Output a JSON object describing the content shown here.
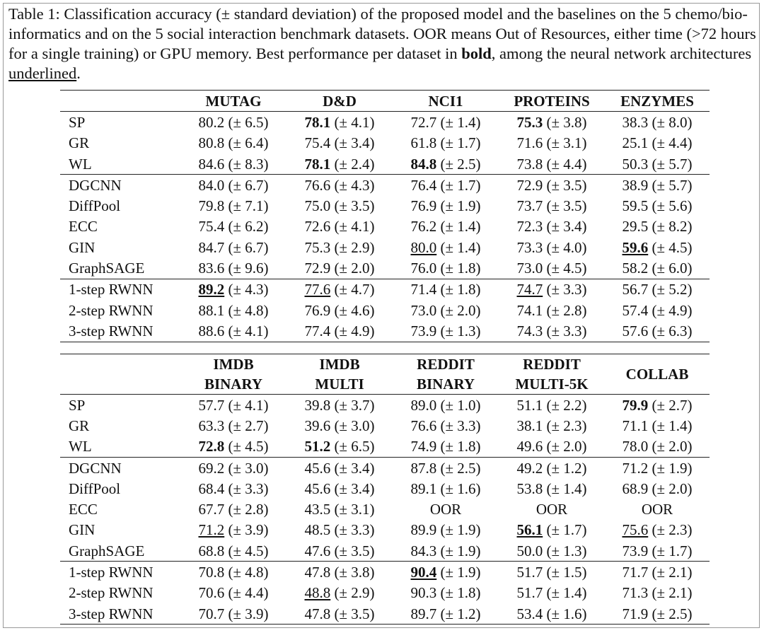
{
  "caption": [
    {
      "text": "Table 1: Classification accuracy (± standard deviation) of the proposed model and the baselines on the 5 chemo/bio-informatics and on the 5 social interaction benchmark datasets. OOR means Out of Resources, either time (>72 hours for a single training) or GPU memory. Best performance per dataset in "
    },
    {
      "text": "bold",
      "style": "bold"
    },
    {
      "text": ", among the neural network architectures "
    },
    {
      "text": "underlined",
      "style": "underline"
    },
    {
      "text": "."
    }
  ],
  "tables": [
    {
      "headers": [
        [
          "MUTAG"
        ],
        [
          "D&D"
        ],
        [
          "NCI1"
        ],
        [
          "PROTEINS"
        ],
        [
          "ENZYMES"
        ]
      ],
      "groups": [
        [
          {
            "label": "SP",
            "cells": [
              {
                "mean": "80.2",
                "sd": "(± 6.5)"
              },
              {
                "mean": "78.1",
                "sd": "(± 4.1)",
                "style": "bold"
              },
              {
                "mean": "72.7",
                "sd": "(± 1.4)"
              },
              {
                "mean": "75.3",
                "sd": "(± 3.8)",
                "style": "bold"
              },
              {
                "mean": "38.3",
                "sd": "(± 8.0)"
              }
            ]
          },
          {
            "label": "GR",
            "cells": [
              {
                "mean": "80.8",
                "sd": "(± 6.4)"
              },
              {
                "mean": "75.4",
                "sd": "(± 3.4)"
              },
              {
                "mean": "61.8",
                "sd": "(± 1.7)"
              },
              {
                "mean": "71.6",
                "sd": "(± 3.1)"
              },
              {
                "mean": "25.1",
                "sd": "(± 4.4)"
              }
            ]
          },
          {
            "label": "WL",
            "cells": [
              {
                "mean": "84.6",
                "sd": "(± 8.3)"
              },
              {
                "mean": "78.1",
                "sd": "(± 2.4)",
                "style": "bold"
              },
              {
                "mean": "84.8",
                "sd": "(± 2.5)",
                "style": "bold"
              },
              {
                "mean": "73.8",
                "sd": "(± 4.4)"
              },
              {
                "mean": "50.3",
                "sd": "(± 5.7)"
              }
            ]
          }
        ],
        [
          {
            "label": "DGCNN",
            "cells": [
              {
                "mean": "84.0",
                "sd": "(± 6.7)"
              },
              {
                "mean": "76.6",
                "sd": "(± 4.3)"
              },
              {
                "mean": "76.4",
                "sd": "(± 1.7)"
              },
              {
                "mean": "72.9",
                "sd": "(± 3.5)"
              },
              {
                "mean": "38.9",
                "sd": "(± 5.7)"
              }
            ]
          },
          {
            "label": "DiffPool",
            "cells": [
              {
                "mean": "79.8",
                "sd": "(± 7.1)"
              },
              {
                "mean": "75.0",
                "sd": "(± 3.5)"
              },
              {
                "mean": "76.9",
                "sd": "(± 1.9)"
              },
              {
                "mean": "73.7",
                "sd": "(± 3.5)"
              },
              {
                "mean": "59.5",
                "sd": "(± 5.6)"
              }
            ]
          },
          {
            "label": "ECC",
            "cells": [
              {
                "mean": "75.4",
                "sd": "(± 6.2)"
              },
              {
                "mean": "72.6",
                "sd": "(± 4.1)"
              },
              {
                "mean": "76.2",
                "sd": "(± 1.4)"
              },
              {
                "mean": "72.3",
                "sd": "(± 3.4)"
              },
              {
                "mean": "29.5",
                "sd": "(± 8.2)"
              }
            ]
          },
          {
            "label": "GIN",
            "cells": [
              {
                "mean": "84.7",
                "sd": "(± 6.7)"
              },
              {
                "mean": "75.3",
                "sd": "(± 2.9)"
              },
              {
                "mean": "80.0",
                "sd": "(± 1.4)",
                "style": "underline"
              },
              {
                "mean": "73.3",
                "sd": "(± 4.0)"
              },
              {
                "mean": "59.6",
                "sd": "(± 4.5)",
                "style": "bold underline"
              }
            ]
          },
          {
            "label": "GraphSAGE",
            "cells": [
              {
                "mean": "83.6",
                "sd": "(± 9.6)"
              },
              {
                "mean": "72.9",
                "sd": "(± 2.0)"
              },
              {
                "mean": "76.0",
                "sd": "(± 1.8)"
              },
              {
                "mean": "73.0",
                "sd": "(± 4.5)"
              },
              {
                "mean": "58.2",
                "sd": "(± 6.0)"
              }
            ]
          }
        ],
        [
          {
            "label": "1-step RWNN",
            "cells": [
              {
                "mean": "89.2",
                "sd": "(± 4.3)",
                "style": "bold underline"
              },
              {
                "mean": "77.6",
                "sd": "(± 4.7)",
                "style": "underline"
              },
              {
                "mean": "71.4",
                "sd": "(± 1.8)"
              },
              {
                "mean": "74.7",
                "sd": "(± 3.3)",
                "style": "underline"
              },
              {
                "mean": "56.7",
                "sd": "(± 5.2)"
              }
            ]
          },
          {
            "label": "2-step RWNN",
            "cells": [
              {
                "mean": "88.1",
                "sd": "(± 4.8)"
              },
              {
                "mean": "76.9",
                "sd": "(± 4.6)"
              },
              {
                "mean": "73.0",
                "sd": "(± 2.0)"
              },
              {
                "mean": "74.1",
                "sd": "(± 2.8)"
              },
              {
                "mean": "57.4",
                "sd": "(± 4.9)"
              }
            ]
          },
          {
            "label": "3-step RWNN",
            "cells": [
              {
                "mean": "88.6",
                "sd": "(± 4.1)"
              },
              {
                "mean": "77.4",
                "sd": "(± 4.9)"
              },
              {
                "mean": "73.9",
                "sd": "(± 1.3)"
              },
              {
                "mean": "74.3",
                "sd": "(± 3.3)"
              },
              {
                "mean": "57.6",
                "sd": "(± 6.3)"
              }
            ]
          }
        ]
      ]
    },
    {
      "headers": [
        [
          "IMDB",
          "BINARY"
        ],
        [
          "IMDB",
          "MULTI"
        ],
        [
          "REDDIT",
          "BINARY"
        ],
        [
          "REDDIT",
          "MULTI-5K"
        ],
        [
          "COLLAB"
        ]
      ],
      "groups": [
        [
          {
            "label": "SP",
            "cells": [
              {
                "mean": "57.7",
                "sd": "(± 4.1)"
              },
              {
                "mean": "39.8",
                "sd": "(± 3.7)"
              },
              {
                "mean": "89.0",
                "sd": "(± 1.0)"
              },
              {
                "mean": "51.1",
                "sd": "(± 2.2)"
              },
              {
                "mean": "79.9",
                "sd": "(± 2.7)",
                "style": "bold"
              }
            ]
          },
          {
            "label": "GR",
            "cells": [
              {
                "mean": "63.3",
                "sd": "(± 2.7)"
              },
              {
                "mean": "39.6",
                "sd": "(± 3.0)"
              },
              {
                "mean": "76.6",
                "sd": "(± 3.3)"
              },
              {
                "mean": "38.1",
                "sd": "(± 2.3)"
              },
              {
                "mean": "71.1",
                "sd": "(± 1.4)"
              }
            ]
          },
          {
            "label": "WL",
            "cells": [
              {
                "mean": "72.8",
                "sd": "(± 4.5)",
                "style": "bold"
              },
              {
                "mean": "51.2",
                "sd": "(± 6.5)",
                "style": "bold"
              },
              {
                "mean": "74.9",
                "sd": "(± 1.8)"
              },
              {
                "mean": "49.6",
                "sd": "(± 2.0)"
              },
              {
                "mean": "78.0",
                "sd": "(± 2.0)"
              }
            ]
          }
        ],
        [
          {
            "label": "DGCNN",
            "cells": [
              {
                "mean": "69.2",
                "sd": "(± 3.0)"
              },
              {
                "mean": "45.6",
                "sd": "(± 3.4)"
              },
              {
                "mean": "87.8",
                "sd": "(± 2.5)"
              },
              {
                "mean": "49.2",
                "sd": "(± 1.2)"
              },
              {
                "mean": "71.2",
                "sd": "(± 1.9)"
              }
            ]
          },
          {
            "label": "DiffPool",
            "cells": [
              {
                "mean": "68.4",
                "sd": "(± 3.3)"
              },
              {
                "mean": "45.6",
                "sd": "(± 3.4)"
              },
              {
                "mean": "89.1",
                "sd": "(± 1.6)"
              },
              {
                "mean": "53.8",
                "sd": "(± 1.4)"
              },
              {
                "mean": "68.9",
                "sd": "(± 2.0)"
              }
            ]
          },
          {
            "label": "ECC",
            "cells": [
              {
                "mean": "67.7",
                "sd": "(± 2.8)"
              },
              {
                "mean": "43.5",
                "sd": "(± 3.1)"
              },
              {
                "text": "OOR"
              },
              {
                "text": "OOR"
              },
              {
                "text": "OOR"
              }
            ]
          },
          {
            "label": "GIN",
            "cells": [
              {
                "mean": "71.2",
                "sd": "(± 3.9)",
                "style": "underline"
              },
              {
                "mean": "48.5",
                "sd": "(± 3.3)"
              },
              {
                "mean": "89.9",
                "sd": "(± 1.9)"
              },
              {
                "mean": "56.1",
                "sd": "(± 1.7)",
                "style": "bold underline"
              },
              {
                "mean": "75.6",
                "sd": "(± 2.3)",
                "style": "underline"
              }
            ]
          },
          {
            "label": "GraphSAGE",
            "cells": [
              {
                "mean": "68.8",
                "sd": "(± 4.5)"
              },
              {
                "mean": "47.6",
                "sd": "(± 3.5)"
              },
              {
                "mean": "84.3",
                "sd": "(± 1.9)"
              },
              {
                "mean": "50.0",
                "sd": "(± 1.3)"
              },
              {
                "mean": "73.9",
                "sd": "(± 1.7)"
              }
            ]
          }
        ],
        [
          {
            "label": "1-step RWNN",
            "cells": [
              {
                "mean": "70.8",
                "sd": "(± 4.8)"
              },
              {
                "mean": "47.8",
                "sd": "(± 3.8)"
              },
              {
                "mean": "90.4",
                "sd": "(± 1.9)",
                "style": "bold underline"
              },
              {
                "mean": "51.7",
                "sd": "(± 1.5)"
              },
              {
                "mean": "71.7",
                "sd": "(± 2.1)"
              }
            ]
          },
          {
            "label": "2-step RWNN",
            "cells": [
              {
                "mean": "70.6",
                "sd": "(± 4.4)"
              },
              {
                "mean": "48.8",
                "sd": "(± 2.9)",
                "style": "underline"
              },
              {
                "mean": "90.3",
                "sd": "(± 1.8)"
              },
              {
                "mean": "51.7",
                "sd": "(± 1.4)"
              },
              {
                "mean": "71.3",
                "sd": "(± 2.1)"
              }
            ]
          },
          {
            "label": "3-step RWNN",
            "cells": [
              {
                "mean": "70.7",
                "sd": "(± 3.9)"
              },
              {
                "mean": "47.8",
                "sd": "(± 3.5)"
              },
              {
                "mean": "89.7",
                "sd": "(± 1.2)"
              },
              {
                "mean": "53.4",
                "sd": "(± 1.6)"
              },
              {
                "mean": "71.9",
                "sd": "(± 2.5)"
              }
            ]
          }
        ]
      ]
    }
  ]
}
